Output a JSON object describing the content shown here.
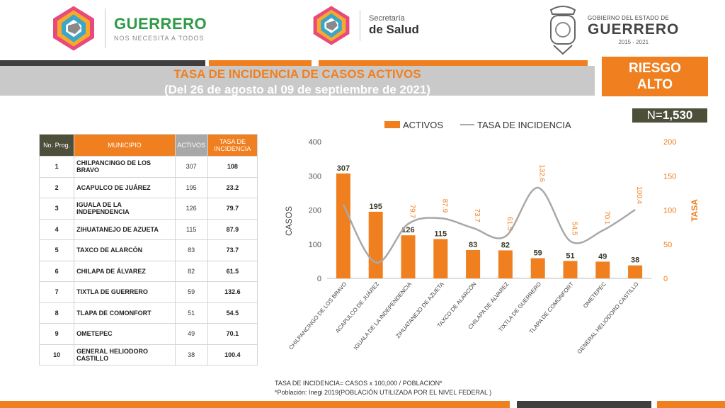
{
  "header": {
    "brand_main": "GUERRERO",
    "brand_sub": "NOS NECESITA A TODOS",
    "sec_line1": "Secretaría",
    "sec_line2": "de Salud",
    "gov_line1": "GOBIERNO DEL ESTADO DE",
    "gov_line2": "GUERRERO",
    "gov_line3": "2015 - 2021"
  },
  "title": {
    "line1": "TASA DE INCIDENCIA DE CASOS ACTIVOS",
    "line2": "(Del 26 de agosto al 09 de septiembre de 2021)"
  },
  "risk": {
    "line1": "RIESGO",
    "line2": "ALTO"
  },
  "total": {
    "prefix": "N=",
    "value": "1,530"
  },
  "table": {
    "headers": {
      "prog": "No. Prog.",
      "municipio": "MUNICIPIO",
      "activos": "ACTIVOS",
      "tasa": "TASA DE INCIDENCIA"
    },
    "rows": [
      {
        "n": "1",
        "municipio": "CHILPANCINGO DE LOS BRAVO",
        "activos": "307",
        "tasa": "108"
      },
      {
        "n": "2",
        "municipio": "ACAPULCO DE JUÁREZ",
        "activos": "195",
        "tasa": "23.2"
      },
      {
        "n": "3",
        "municipio": "IGUALA DE LA INDEPENDENCIA",
        "activos": "126",
        "tasa": "79.7"
      },
      {
        "n": "4",
        "municipio": "ZIHUATANEJO DE AZUETA",
        "activos": "115",
        "tasa": "87.9"
      },
      {
        "n": "5",
        "municipio": "TAXCO DE ALARCÓN",
        "activos": "83",
        "tasa": "73.7"
      },
      {
        "n": "6",
        "municipio": "CHILAPA DE ÁLVAREZ",
        "activos": "82",
        "tasa": "61.5"
      },
      {
        "n": "7",
        "municipio": "TIXTLA DE GUERRERO",
        "activos": "59",
        "tasa": "132.6"
      },
      {
        "n": "8",
        "municipio": "TLAPA DE COMONFORT",
        "activos": "51",
        "tasa": "54.5"
      },
      {
        "n": "9",
        "municipio": "OMETEPEC",
        "activos": "49",
        "tasa": "70.1"
      },
      {
        "n": "10",
        "municipio": "GENERAL HELIODORO CASTILLO",
        "activos": "38",
        "tasa": "100.4"
      }
    ]
  },
  "chart_data": {
    "type": "bar",
    "categories": [
      "CHILPANCINGO DE LOS BRAVO",
      "ACAPULCO DE JUÁREZ",
      "IGUALA DE LA INDEPENDENCIA",
      "ZIHUATANEJO DE AZUETA",
      "TAXCO DE ALARCÓN",
      "CHILAPA DE ÁLVAREZ",
      "TIXTLA DE GUERRERO",
      "TLAPA DE COMONFORT",
      "OMETEPEC",
      "GENERAL HELIODORO CASTILLO"
    ],
    "series": [
      {
        "name": "ACTIVOS",
        "type": "bar",
        "axis": "left",
        "values": [
          307,
          195,
          126,
          115,
          83,
          82,
          59,
          51,
          49,
          38
        ]
      },
      {
        "name": "TASA DE INCIDENCIA",
        "type": "line",
        "axis": "right",
        "values": [
          108,
          23.2,
          79.7,
          87.9,
          73.7,
          61.5,
          132.6,
          54.5,
          70.1,
          100.4
        ]
      }
    ],
    "ylabel": "CASOS",
    "ylabel_right": "TASA",
    "ylim": [
      0,
      400
    ],
    "yticks": [
      0,
      100,
      200,
      300,
      400
    ],
    "ylim_right": [
      0,
      200
    ],
    "yticks_right": [
      0,
      50,
      100,
      150,
      200
    ],
    "grid": false,
    "legend": "top",
    "colors": {
      "bar": "#f07f1f",
      "line": "#a8a8a8",
      "right_axis": "#f07f1f"
    }
  },
  "footer": {
    "line1": "TASA DE INCIDENCIA= CASOS x 100,000 / POBLACION*",
    "line2": "*Población: Inegi 2019(POBLACIÓN UTILIZADA POR EL NIVEL FEDERAL )"
  }
}
